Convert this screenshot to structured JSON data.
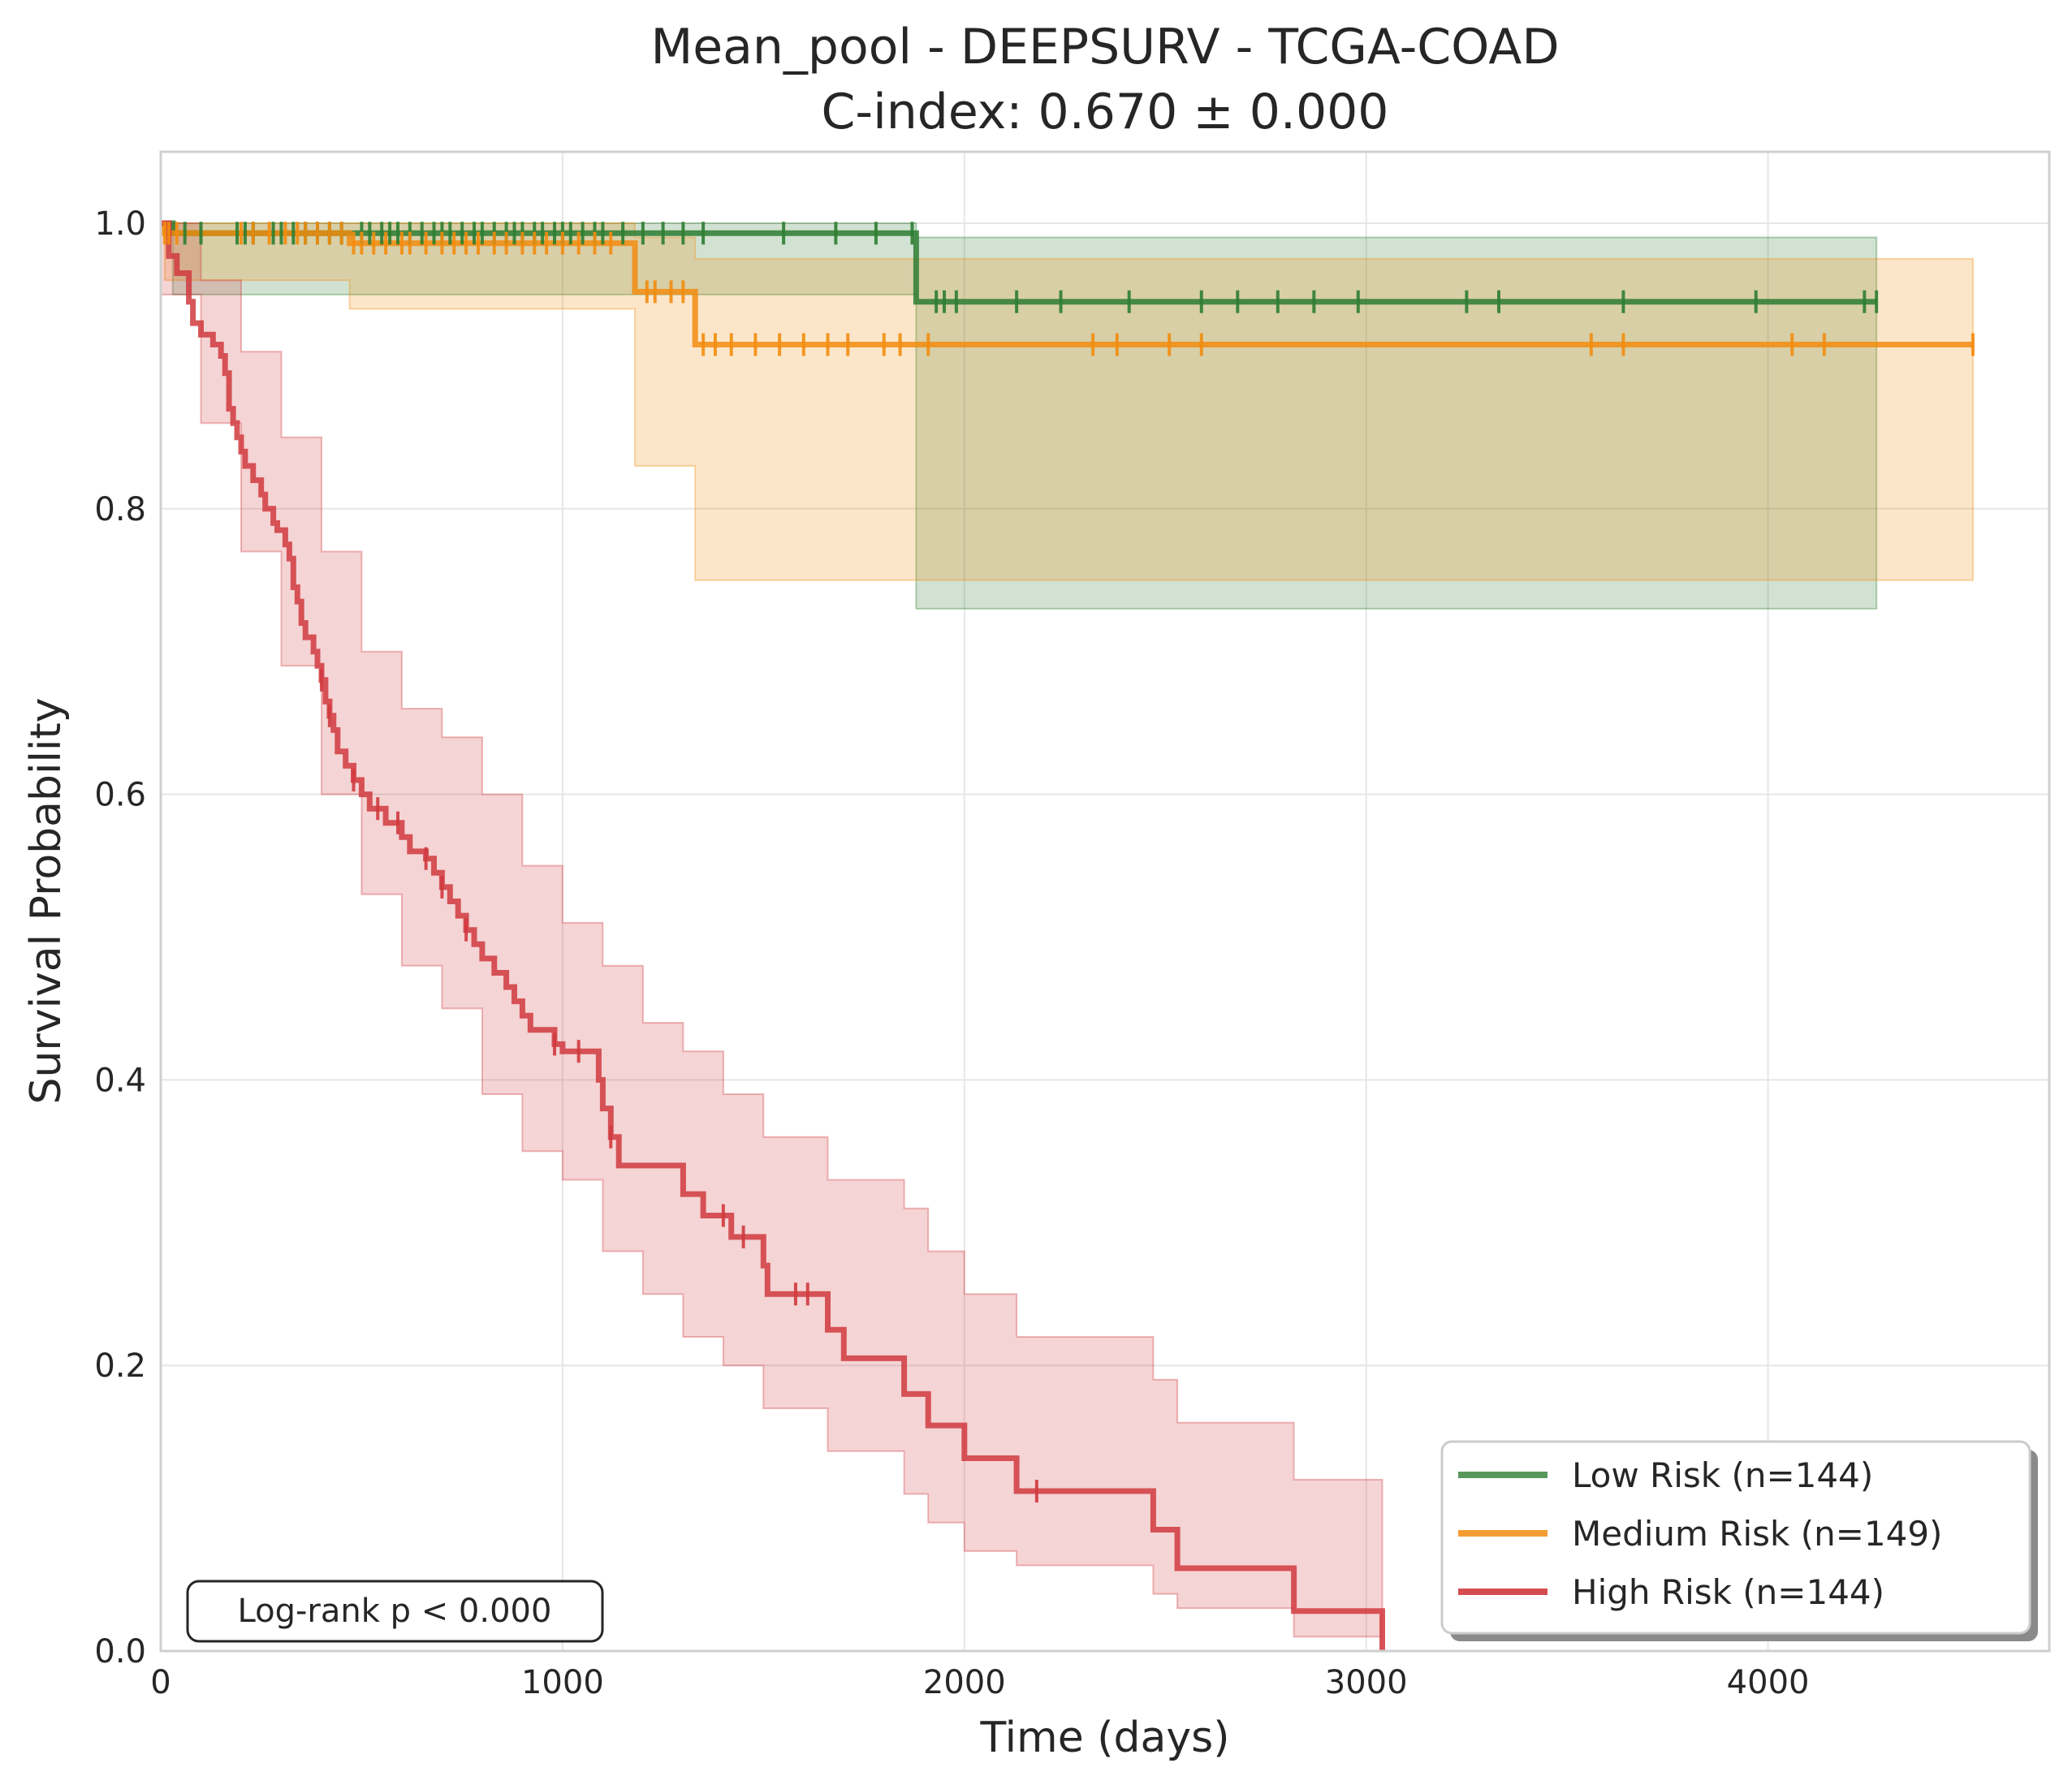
{
  "chart_data": {
    "type": "line",
    "subtype": "kaplan-meier",
    "title": "Mean_pool - DEEPSURV - TCGA-COAD",
    "subtitle": "C-index: 0.670 ± 0.000",
    "xlabel": "Time (days)",
    "ylabel": "Survival Probability",
    "xlim": [
      0,
      4700
    ],
    "ylim": [
      0,
      1.05
    ],
    "xticks": [
      0,
      1000,
      2000,
      3000,
      4000
    ],
    "yticks": [
      0.0,
      0.2,
      0.4,
      0.6,
      0.8,
      1.0
    ],
    "xtick_labels": [
      "0",
      "1000",
      "2000",
      "3000",
      "4000"
    ],
    "ytick_labels": [
      "0.0",
      "0.2",
      "0.4",
      "0.6",
      "0.8",
      "1.0"
    ],
    "grid": true,
    "legend_position": "bottom-right",
    "annotation": "Log-rank p < 0.000",
    "series": [
      {
        "name": "Low Risk (n=144)",
        "color": "#2e7d32",
        "steps": [
          [
            0,
            1.0
          ],
          [
            30,
            0.993
          ],
          [
            1880,
            0.945
          ],
          [
            4270,
            0.945
          ]
        ],
        "ci": [
          [
            0,
            1.0,
            1.0
          ],
          [
            30,
            0.95,
            1.0
          ],
          [
            1880,
            0.73,
            0.99
          ],
          [
            4270,
            0.73,
            0.99
          ]
        ],
        "censor": [
          60,
          100,
          190,
          210,
          230,
          280,
          300,
          330,
          360,
          390,
          420,
          450,
          500,
          520,
          550,
          570,
          590,
          620,
          650,
          680,
          700,
          720,
          750,
          780,
          800,
          830,
          860,
          880,
          900,
          930,
          950,
          980,
          1000,
          1020,
          1050,
          1080,
          1100,
          1150,
          1200,
          1250,
          1300,
          1350,
          1550,
          1680,
          1780,
          1870,
          1930,
          1950,
          1980,
          2130,
          2240,
          2410,
          2590,
          2680,
          2780,
          2870,
          2980,
          3250,
          3330,
          3640,
          3970,
          4240,
          4270
        ]
      },
      {
        "name": "Medium Risk (n=149)",
        "color": "#f28c0f",
        "steps": [
          [
            0,
            1.0
          ],
          [
            10,
            0.993
          ],
          [
            470,
            0.986
          ],
          [
            1180,
            0.952
          ],
          [
            1330,
            0.915
          ],
          [
            4510,
            0.915
          ]
        ],
        "ci": [
          [
            0,
            1.0,
            1.0
          ],
          [
            10,
            0.96,
            1.0
          ],
          [
            470,
            0.94,
            1.0
          ],
          [
            1180,
            0.83,
            0.99
          ],
          [
            1330,
            0.75,
            0.975
          ],
          [
            4510,
            0.75,
            0.975
          ]
        ],
        "censor": [
          10,
          20,
          40,
          200,
          230,
          270,
          310,
          340,
          360,
          390,
          420,
          450,
          480,
          500,
          530,
          560,
          600,
          620,
          660,
          700,
          730,
          760,
          790,
          830,
          860,
          900,
          930,
          960,
          1000,
          1040,
          1080,
          1120,
          1210,
          1230,
          1270,
          1300,
          1350,
          1380,
          1420,
          1480,
          1540,
          1600,
          1660,
          1710,
          1800,
          1840,
          1910,
          2320,
          2380,
          2510,
          2590,
          3560,
          3640,
          4060,
          4140,
          4510
        ]
      },
      {
        "name": "High Risk (n=144)",
        "color": "#d03a3e",
        "steps": [
          [
            0,
            1.0
          ],
          [
            20,
            0.977
          ],
          [
            40,
            0.965
          ],
          [
            70,
            0.945
          ],
          [
            80,
            0.93
          ],
          [
            100,
            0.922
          ],
          [
            130,
            0.915
          ],
          [
            150,
            0.907
          ],
          [
            160,
            0.895
          ],
          [
            170,
            0.87
          ],
          [
            180,
            0.86
          ],
          [
            190,
            0.85
          ],
          [
            200,
            0.84
          ],
          [
            210,
            0.83
          ],
          [
            230,
            0.82
          ],
          [
            250,
            0.81
          ],
          [
            260,
            0.8
          ],
          [
            280,
            0.79
          ],
          [
            290,
            0.785
          ],
          [
            310,
            0.775
          ],
          [
            320,
            0.765
          ],
          [
            330,
            0.745
          ],
          [
            340,
            0.735
          ],
          [
            350,
            0.72
          ],
          [
            360,
            0.71
          ],
          [
            380,
            0.7
          ],
          [
            390,
            0.69
          ],
          [
            400,
            0.68
          ],
          [
            410,
            0.665
          ],
          [
            420,
            0.655
          ],
          [
            430,
            0.645
          ],
          [
            440,
            0.63
          ],
          [
            460,
            0.62
          ],
          [
            480,
            0.61
          ],
          [
            500,
            0.6
          ],
          [
            520,
            0.59
          ],
          [
            560,
            0.58
          ],
          [
            600,
            0.57
          ],
          [
            620,
            0.56
          ],
          [
            660,
            0.555
          ],
          [
            680,
            0.545
          ],
          [
            700,
            0.535
          ],
          [
            720,
            0.525
          ],
          [
            740,
            0.515
          ],
          [
            760,
            0.505
          ],
          [
            780,
            0.495
          ],
          [
            800,
            0.485
          ],
          [
            830,
            0.475
          ],
          [
            860,
            0.465
          ],
          [
            880,
            0.455
          ],
          [
            900,
            0.445
          ],
          [
            920,
            0.435
          ],
          [
            980,
            0.425
          ],
          [
            1000,
            0.42
          ],
          [
            1090,
            0.4
          ],
          [
            1100,
            0.38
          ],
          [
            1120,
            0.36
          ],
          [
            1140,
            0.34
          ],
          [
            1300,
            0.32
          ],
          [
            1350,
            0.305
          ],
          [
            1420,
            0.29
          ],
          [
            1500,
            0.27
          ],
          [
            1510,
            0.25
          ],
          [
            1660,
            0.225
          ],
          [
            1700,
            0.205
          ],
          [
            1850,
            0.18
          ],
          [
            1910,
            0.158
          ],
          [
            2000,
            0.135
          ],
          [
            2130,
            0.112
          ],
          [
            2470,
            0.085
          ],
          [
            2530,
            0.058
          ],
          [
            2820,
            0.028
          ],
          [
            3040,
            0.0
          ]
        ],
        "ci": [
          [
            0,
            0.95,
            1.0
          ],
          [
            100,
            0.86,
            0.96
          ],
          [
            200,
            0.77,
            0.91
          ],
          [
            300,
            0.69,
            0.85
          ],
          [
            400,
            0.6,
            0.77
          ],
          [
            500,
            0.53,
            0.7
          ],
          [
            600,
            0.48,
            0.66
          ],
          [
            700,
            0.45,
            0.64
          ],
          [
            800,
            0.39,
            0.6
          ],
          [
            900,
            0.35,
            0.55
          ],
          [
            1000,
            0.33,
            0.51
          ],
          [
            1100,
            0.28,
            0.48
          ],
          [
            1200,
            0.25,
            0.44
          ],
          [
            1300,
            0.22,
            0.42
          ],
          [
            1400,
            0.2,
            0.39
          ],
          [
            1500,
            0.17,
            0.36
          ],
          [
            1660,
            0.14,
            0.33
          ],
          [
            1850,
            0.11,
            0.31
          ],
          [
            1910,
            0.09,
            0.28
          ],
          [
            2000,
            0.07,
            0.25
          ],
          [
            2130,
            0.06,
            0.22
          ],
          [
            2470,
            0.04,
            0.19
          ],
          [
            2530,
            0.03,
            0.16
          ],
          [
            2820,
            0.01,
            0.12
          ],
          [
            3040,
            0.0,
            0.12
          ]
        ],
        "censor": [
          400,
          420,
          480,
          540,
          590,
          660,
          700,
          760,
          980,
          1040,
          1120,
          1400,
          1450,
          1580,
          1610,
          2180
        ]
      }
    ]
  }
}
